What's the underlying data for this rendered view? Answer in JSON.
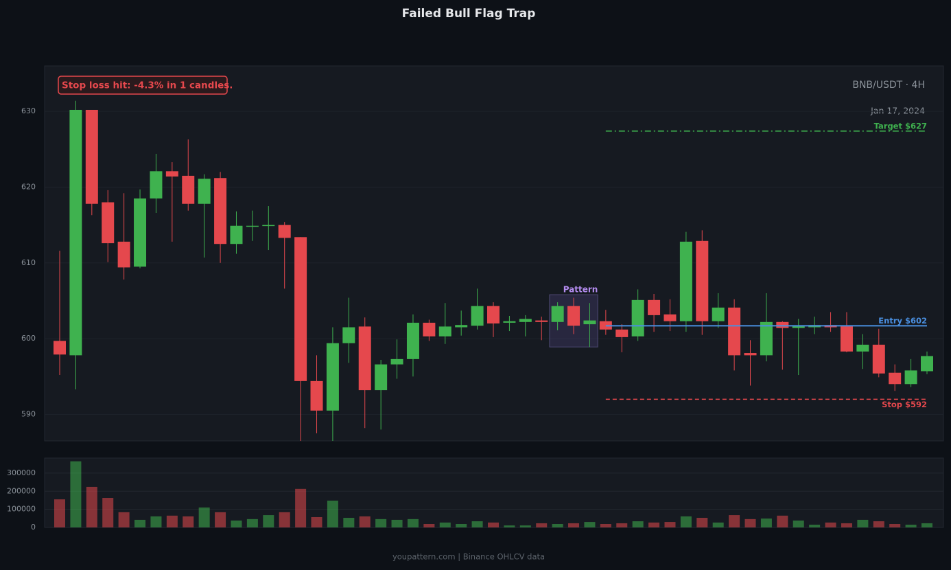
{
  "chart_data": {
    "type": "candlestick",
    "title": "Failed Bull Flag Trap",
    "symbol": "BNB/USDT · 4H",
    "date": "Jan 17, 2024",
    "annotation": "Stop loss hit: -4.3% in 1 candles.",
    "footer": "youpattern.com | Binance OHLCV data",
    "up_color": "#3fb24f",
    "down_color": "#e5484d",
    "open": [
      599.7,
      597.8,
      630.2,
      618.0,
      612.8,
      609.5,
      618.5,
      622.1,
      621.5,
      617.8,
      621.2,
      612.5,
      614.9,
      614.9,
      615.0,
      613.4,
      594.4,
      590.5,
      599.4,
      601.6,
      593.2,
      596.6,
      597.3,
      602.1,
      600.3,
      601.5,
      601.7,
      604.3,
      602.1,
      602.2,
      602.4,
      602.2,
      604.3,
      601.9,
      602.3,
      601.2,
      600.3,
      605.1,
      603.2,
      602.3,
      612.9,
      602.3,
      604.1,
      598.1,
      597.8,
      602.2,
      601.4,
      601.5,
      601.8,
      601.7,
      598.3,
      599.2,
      595.5,
      594.0,
      595.7
    ],
    "high": [
      611.6,
      631.4,
      630.2,
      619.6,
      619.2,
      619.7,
      624.4,
      623.3,
      626.3,
      621.7,
      622.0,
      616.8,
      616.9,
      617.5,
      615.4,
      613.4,
      597.8,
      601.5,
      605.4,
      602.8,
      597.2,
      599.9,
      603.2,
      602.5,
      604.7,
      603.7,
      606.6,
      604.8,
      603.0,
      603.1,
      602.9,
      604.8,
      605.4,
      604.7,
      603.8,
      601.9,
      606.5,
      605.9,
      605.2,
      614.1,
      614.3,
      606.0,
      605.2,
      599.8,
      606.0,
      602.3,
      602.6,
      602.9,
      603.5,
      603.5,
      600.6,
      601.3,
      596.6,
      597.3,
      598.3
    ],
    "low": [
      595.2,
      593.3,
      616.3,
      610.1,
      607.8,
      609.3,
      616.6,
      612.8,
      616.9,
      610.7,
      610.0,
      611.2,
      612.9,
      611.7,
      606.6,
      586.5,
      587.5,
      586.5,
      596.8,
      588.2,
      588.0,
      594.7,
      595.0,
      599.7,
      599.3,
      600.4,
      601.2,
      600.2,
      601.0,
      600.3,
      599.8,
      601.1,
      600.6,
      598.9,
      600.5,
      598.2,
      599.7,
      600.9,
      601.0,
      600.9,
      600.5,
      601.4,
      595.8,
      593.8,
      597.0,
      595.9,
      595.2,
      600.6,
      600.9,
      598.2,
      596.0,
      594.9,
      593.1,
      593.6,
      595.3
    ],
    "close": [
      597.9,
      630.2,
      617.8,
      612.6,
      609.4,
      618.5,
      622.1,
      621.4,
      617.8,
      621.1,
      612.5,
      614.9,
      614.9,
      615.0,
      613.3,
      594.4,
      590.5,
      599.4,
      601.5,
      593.2,
      596.6,
      597.3,
      602.1,
      600.3,
      601.6,
      601.8,
      604.3,
      602.0,
      602.3,
      602.6,
      602.2,
      604.3,
      601.7,
      602.4,
      601.2,
      600.2,
      605.1,
      603.1,
      602.3,
      612.8,
      602.3,
      604.1,
      597.8,
      597.8,
      602.2,
      601.4,
      601.7,
      601.8,
      601.5,
      598.3,
      599.2,
      595.4,
      594.0,
      595.8,
      597.7
    ],
    "volume": [
      155000,
      365000,
      224000,
      163000,
      84000,
      42000,
      61000,
      65000,
      61000,
      110000,
      84000,
      38000,
      46000,
      68000,
      84000,
      213000,
      57000,
      148000,
      53000,
      61000,
      46000,
      42000,
      46000,
      19000,
      27000,
      19000,
      34000,
      27000,
      11000,
      11000,
      23000,
      19000,
      23000,
      30000,
      19000,
      23000,
      34000,
      27000,
      30000,
      61000,
      53000,
      27000,
      68000,
      46000,
      49000,
      65000,
      38000,
      15000,
      27000,
      23000,
      42000,
      34000,
      19000,
      15000,
      23000
    ],
    "ylim": [
      586.5,
      636
    ],
    "yticks": [
      590,
      600,
      610,
      620,
      630
    ],
    "volume_ylim": [
      0,
      383000
    ],
    "volume_yticks": [
      0,
      100000,
      200000,
      300000
    ],
    "grid": true,
    "pattern": {
      "label": "Pattern",
      "top": 605.8,
      "bottom": 598.9,
      "first_candle": 31,
      "last_candle": 33
    },
    "levels": [
      {
        "label": "Target $627",
        "value": 627.4,
        "color": "#3fb24f",
        "style": "dashdot",
        "from_candle": 34
      },
      {
        "label": "Entry $602",
        "value": 601.7,
        "color": "#4a8fe0",
        "style": "solid",
        "from_candle": 34
      },
      {
        "label": "Stop $592",
        "value": 592.0,
        "color": "#e5484d",
        "style": "dashed",
        "from_candle": 34
      }
    ]
  }
}
